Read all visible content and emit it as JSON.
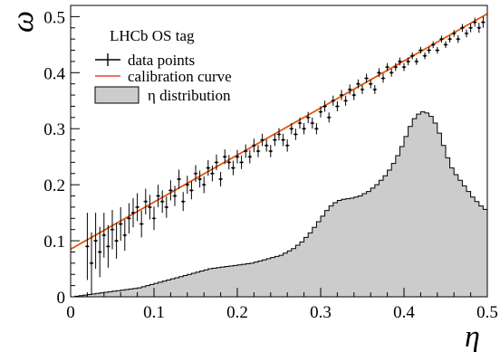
{
  "chart_data": {
    "type": "scatter",
    "title": "",
    "xlabel": "η",
    "ylabel": "ω",
    "xlim": [
      0,
      0.5
    ],
    "ylim": [
      0,
      0.52
    ],
    "x_ticks": [
      0,
      0.1,
      0.2,
      0.3,
      0.4,
      0.5
    ],
    "y_ticks": [
      0,
      0.1,
      0.2,
      0.3,
      0.4,
      0.5
    ],
    "x_tick_labels": [
      "0",
      "0.1",
      "0.2",
      "0.3",
      "0.4",
      "0.5"
    ],
    "y_tick_labels": [
      "0",
      "0.1",
      "0.2",
      "0.3",
      "0.4",
      "0.5"
    ],
    "grid": false,
    "legend": {
      "position": "top-left",
      "header": "LHCb OS tag",
      "entries": [
        {
          "key": "points",
          "label": "data points"
        },
        {
          "key": "curve",
          "label": "calibration curve"
        },
        {
          "key": "hist",
          "label": "η distribution"
        }
      ]
    },
    "colors": {
      "points": "#000000",
      "curve": "#e8452c",
      "curve_overlay": "#e8a020",
      "hist_fill": "#cccccc",
      "hist_line": "#000000"
    },
    "series": [
      {
        "name": "data points",
        "kind": "errorbar",
        "x": [
          0.02,
          0.025,
          0.03,
          0.035,
          0.04,
          0.045,
          0.05,
          0.055,
          0.06,
          0.065,
          0.07,
          0.075,
          0.08,
          0.085,
          0.09,
          0.095,
          0.1,
          0.105,
          0.11,
          0.115,
          0.12,
          0.125,
          0.13,
          0.135,
          0.14,
          0.145,
          0.15,
          0.155,
          0.16,
          0.165,
          0.17,
          0.175,
          0.18,
          0.185,
          0.19,
          0.195,
          0.2,
          0.205,
          0.21,
          0.215,
          0.22,
          0.225,
          0.23,
          0.235,
          0.24,
          0.245,
          0.25,
          0.255,
          0.26,
          0.265,
          0.27,
          0.275,
          0.28,
          0.285,
          0.29,
          0.295,
          0.3,
          0.305,
          0.31,
          0.315,
          0.32,
          0.325,
          0.33,
          0.335,
          0.34,
          0.345,
          0.35,
          0.355,
          0.36,
          0.365,
          0.37,
          0.375,
          0.38,
          0.385,
          0.39,
          0.395,
          0.4,
          0.405,
          0.41,
          0.415,
          0.42,
          0.425,
          0.43,
          0.435,
          0.44,
          0.445,
          0.45,
          0.455,
          0.46,
          0.465,
          0.47,
          0.475,
          0.48,
          0.485,
          0.49,
          0.495
        ],
        "y": [
          0.09,
          0.06,
          0.1,
          0.08,
          0.11,
          0.09,
          0.12,
          0.1,
          0.13,
          0.11,
          0.14,
          0.15,
          0.16,
          0.13,
          0.17,
          0.16,
          0.14,
          0.18,
          0.17,
          0.16,
          0.19,
          0.18,
          0.21,
          0.17,
          0.2,
          0.19,
          0.22,
          0.21,
          0.2,
          0.23,
          0.22,
          0.24,
          0.21,
          0.25,
          0.24,
          0.23,
          0.25,
          0.24,
          0.26,
          0.25,
          0.27,
          0.26,
          0.28,
          0.27,
          0.26,
          0.28,
          0.29,
          0.28,
          0.27,
          0.3,
          0.29,
          0.31,
          0.3,
          0.32,
          0.31,
          0.3,
          0.33,
          0.34,
          0.32,
          0.35,
          0.34,
          0.36,
          0.35,
          0.37,
          0.36,
          0.38,
          0.37,
          0.39,
          0.38,
          0.37,
          0.4,
          0.39,
          0.41,
          0.4,
          0.41,
          0.42,
          0.41,
          0.42,
          0.43,
          0.42,
          0.44,
          0.43,
          0.44,
          0.45,
          0.44,
          0.46,
          0.45,
          0.46,
          0.47,
          0.46,
          0.48,
          0.47,
          0.48,
          0.49,
          0.48,
          0.49
        ],
        "yerr": [
          0.06,
          0.055,
          0.05,
          0.045,
          0.04,
          0.038,
          0.035,
          0.032,
          0.03,
          0.028,
          0.027,
          0.026,
          0.025,
          0.024,
          0.023,
          0.022,
          0.021,
          0.02,
          0.02,
          0.019,
          0.018,
          0.018,
          0.017,
          0.017,
          0.016,
          0.016,
          0.015,
          0.015,
          0.015,
          0.014,
          0.014,
          0.014,
          0.013,
          0.013,
          0.013,
          0.013,
          0.012,
          0.012,
          0.012,
          0.012,
          0.012,
          0.011,
          0.011,
          0.011,
          0.011,
          0.011,
          0.011,
          0.011,
          0.011,
          0.01,
          0.01,
          0.01,
          0.01,
          0.01,
          0.01,
          0.01,
          0.01,
          0.01,
          0.009,
          0.009,
          0.009,
          0.009,
          0.009,
          0.009,
          0.009,
          0.008,
          0.008,
          0.008,
          0.008,
          0.008,
          0.008,
          0.008,
          0.007,
          0.007,
          0.007,
          0.007,
          0.007,
          0.007,
          0.006,
          0.006,
          0.006,
          0.006,
          0.006,
          0.006,
          0.006,
          0.006,
          0.006,
          0.006,
          0.006,
          0.007,
          0.007,
          0.007,
          0.008,
          0.008,
          0.009,
          0.01
        ]
      },
      {
        "name": "calibration curve",
        "kind": "line",
        "x": [
          0.0,
          0.5
        ],
        "y": [
          0.085,
          0.505
        ]
      },
      {
        "name": "η distribution",
        "kind": "histogram",
        "x_start": 0.0,
        "bin_width": 0.005,
        "values": [
          0.0,
          0.001,
          0.002,
          0.003,
          0.004,
          0.005,
          0.006,
          0.007,
          0.008,
          0.009,
          0.01,
          0.011,
          0.012,
          0.013,
          0.014,
          0.015,
          0.016,
          0.018,
          0.02,
          0.022,
          0.024,
          0.026,
          0.028,
          0.03,
          0.032,
          0.034,
          0.036,
          0.038,
          0.04,
          0.042,
          0.044,
          0.046,
          0.048,
          0.05,
          0.051,
          0.052,
          0.053,
          0.054,
          0.055,
          0.056,
          0.057,
          0.058,
          0.059,
          0.06,
          0.062,
          0.064,
          0.066,
          0.068,
          0.07,
          0.072,
          0.074,
          0.078,
          0.082,
          0.086,
          0.092,
          0.098,
          0.106,
          0.114,
          0.124,
          0.134,
          0.144,
          0.154,
          0.162,
          0.168,
          0.172,
          0.174,
          0.175,
          0.176,
          0.178,
          0.18,
          0.184,
          0.188,
          0.194,
          0.2,
          0.208,
          0.216,
          0.226,
          0.238,
          0.252,
          0.268,
          0.286,
          0.304,
          0.318,
          0.326,
          0.33,
          0.328,
          0.322,
          0.31,
          0.292,
          0.27,
          0.248,
          0.23,
          0.218,
          0.208,
          0.198,
          0.188,
          0.178,
          0.17,
          0.162,
          0.156
        ]
      }
    ]
  }
}
